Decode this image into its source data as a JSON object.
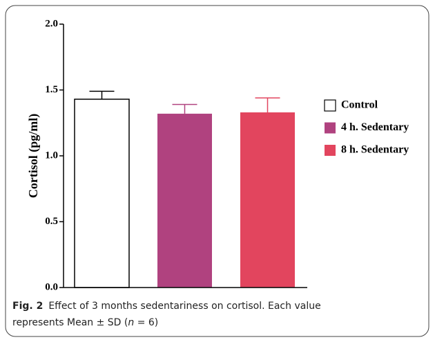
{
  "chart_data": {
    "type": "bar",
    "y_label": "Cortisol (pg/ml)",
    "categories": [
      null
    ],
    "series": [
      {
        "name": "Control",
        "color": "#ffffff",
        "values": [
          1.43
        ],
        "errors": [
          0.06
        ]
      },
      {
        "name": "4 h. Sedentary",
        "color": "#b0427f",
        "values": [
          1.32
        ],
        "errors": [
          0.07
        ]
      },
      {
        "name": "8 h. Sedentary",
        "color": "#e2455e",
        "values": [
          1.33
        ],
        "errors": [
          0.11
        ]
      }
    ],
    "ylim": [
      0,
      2
    ],
    "yticks": [
      {
        "value": 0,
        "label": "0.0"
      },
      0.5,
      {
        "value": 1,
        "label": "1.0"
      },
      1.5,
      {
        "value": 2,
        "label": "2.0"
      }
    ],
    "legend": "right"
  },
  "caption": {
    "label": "Fig. 2",
    "line1": "Effect of 3 months sedentariness on cortisol. Each value",
    "line2_start": "represents Mean ± SD (",
    "line2_n": "n",
    "line2_end": " = 6)"
  }
}
